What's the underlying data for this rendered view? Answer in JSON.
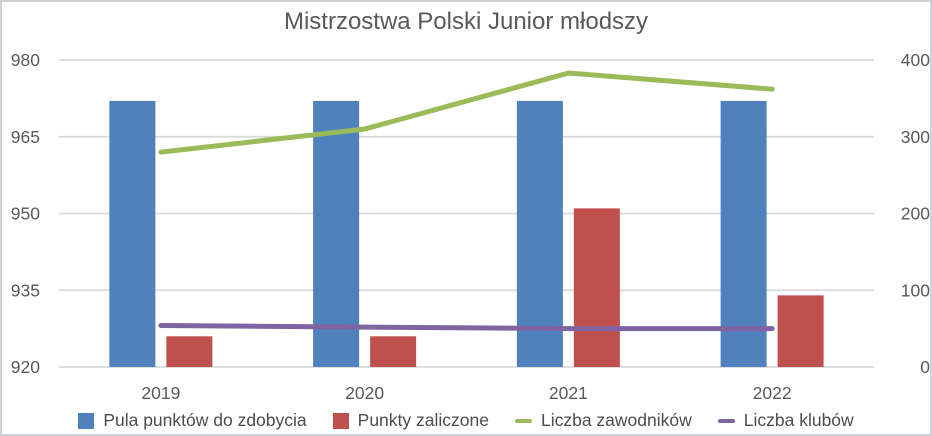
{
  "title": "Mistrzostwa Polski Junior młodszy",
  "chart_data": {
    "type": "bar",
    "subtype": "combo bar+line, dual axis",
    "categories": [
      "2019",
      "2020",
      "2021",
      "2022"
    ],
    "series": [
      {
        "name": "Pula punktów do zdobycia",
        "type": "bar",
        "axis": "left",
        "color": "#4F81BD",
        "values": [
          972,
          972,
          972,
          972
        ]
      },
      {
        "name": "Punkty zaliczone",
        "type": "bar",
        "axis": "left",
        "color": "#C0504D",
        "values": [
          926,
          926,
          951,
          934
        ]
      },
      {
        "name": "Liczba zawodników",
        "type": "line",
        "axis": "right",
        "color": "#9BBB59",
        "values": [
          280,
          310,
          383,
          362
        ]
      },
      {
        "name": "Liczba klubów",
        "type": "line",
        "axis": "right",
        "color": "#8064A2",
        "values": [
          54,
          52,
          50,
          50
        ]
      }
    ],
    "left_axis": {
      "min": 920,
      "max": 980,
      "ticks": [
        920,
        935,
        950,
        965,
        980
      ]
    },
    "right_axis": {
      "min": 0,
      "max": 400,
      "ticks": [
        0,
        100,
        200,
        300,
        400
      ]
    },
    "grid": "horizontal",
    "legend_position": "bottom",
    "text_color": "#595959",
    "grid_color": "#d9d9d9"
  }
}
